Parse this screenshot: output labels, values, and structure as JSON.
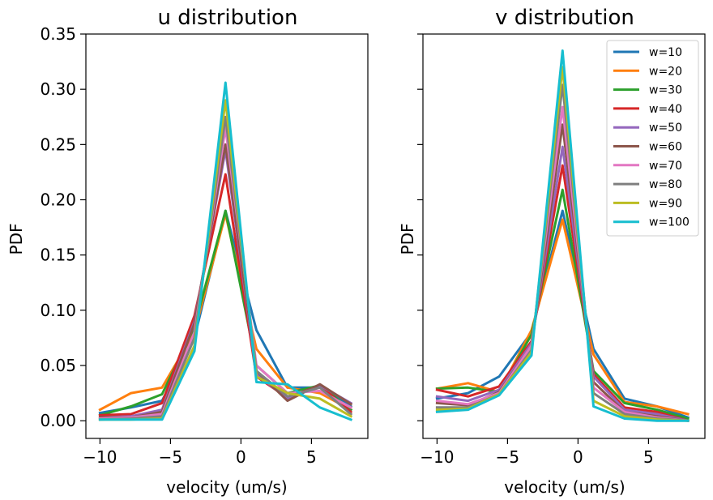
{
  "chart_data": [
    {
      "type": "line",
      "title": "u distribution",
      "xlabel": "velocity (um/s)",
      "ylabel": "PDF",
      "xlim": [
        -11,
        9
      ],
      "ylim": [
        -0.016,
        0.35
      ],
      "xticks": [
        -10,
        -5,
        0,
        5
      ],
      "yticks": [
        0.0,
        0.05,
        0.1,
        0.15,
        0.2,
        0.25,
        0.3,
        0.35
      ],
      "xtick_labels": [
        "−10",
        "−5",
        "0",
        "5"
      ],
      "ytick_labels": [
        "0.00",
        "0.05",
        "0.10",
        "0.15",
        "0.20",
        "0.25",
        "0.30",
        "0.35"
      ],
      "legend": null,
      "grid": false,
      "x": [
        -10,
        -7.8,
        -5.6,
        -3.3,
        -1.1,
        1.1,
        3.3,
        5.6,
        7.8
      ],
      "series": [
        {
          "name": "w=10",
          "color": "#1f77b4",
          "values": [
            0.007,
            0.012,
            0.018,
            0.075,
            0.19,
            0.082,
            0.03,
            0.03,
            0.013
          ]
        },
        {
          "name": "w=20",
          "color": "#ff7f0e",
          "values": [
            0.01,
            0.025,
            0.03,
            0.08,
            0.187,
            0.065,
            0.03,
            0.025,
            0.01
          ]
        },
        {
          "name": "w=30",
          "color": "#2ca02c",
          "values": [
            0.005,
            0.013,
            0.024,
            0.085,
            0.19,
            0.05,
            0.025,
            0.032,
            0.01
          ]
        },
        {
          "name": "w=40",
          "color": "#d62728",
          "values": [
            0.005,
            0.006,
            0.016,
            0.095,
            0.223,
            0.04,
            0.021,
            0.032,
            0.008
          ]
        },
        {
          "name": "w=50",
          "color": "#9467bd",
          "values": [
            0.003,
            0.004,
            0.01,
            0.09,
            0.245,
            0.042,
            0.02,
            0.032,
            0.016
          ]
        },
        {
          "name": "w=60",
          "color": "#8c564b",
          "values": [
            0.003,
            0.003,
            0.008,
            0.088,
            0.25,
            0.045,
            0.018,
            0.033,
            0.015
          ]
        },
        {
          "name": "w=70",
          "color": "#e377c2",
          "values": [
            0.002,
            0.003,
            0.006,
            0.08,
            0.265,
            0.05,
            0.025,
            0.027,
            0.012
          ]
        },
        {
          "name": "w=80",
          "color": "#7f7f7f",
          "values": [
            0.001,
            0.002,
            0.004,
            0.075,
            0.275,
            0.045,
            0.022,
            0.03,
            0.006
          ]
        },
        {
          "name": "w=90",
          "color": "#bcbd22",
          "values": [
            0.001,
            0.001,
            0.002,
            0.068,
            0.29,
            0.04,
            0.025,
            0.02,
            0.004
          ]
        },
        {
          "name": "w=100",
          "color": "#17becf",
          "values": [
            0.001,
            0.001,
            0.001,
            0.063,
            0.306,
            0.035,
            0.033,
            0.012,
            0.001
          ]
        }
      ]
    },
    {
      "type": "line",
      "title": "v distribution",
      "xlabel": "velocity (um/s)",
      "ylabel": "PDF",
      "xlim": [
        -11,
        9
      ],
      "ylim": [
        -0.016,
        0.35
      ],
      "xticks": [
        -10,
        -5,
        0,
        5
      ],
      "yticks": [
        0.0,
        0.05,
        0.1,
        0.15,
        0.2,
        0.25,
        0.3,
        0.35
      ],
      "xtick_labels": [
        "−10",
        "−5",
        "0",
        "5"
      ],
      "legend": "top-right",
      "grid": false,
      "x": [
        -10,
        -7.8,
        -5.6,
        -3.3,
        -1.1,
        1.1,
        3.3,
        5.6,
        7.8
      ],
      "series": [
        {
          "name": "w=10",
          "color": "#1f77b4",
          "values": [
            0.02,
            0.025,
            0.04,
            0.08,
            0.19,
            0.065,
            0.02,
            0.013,
            0.003
          ]
        },
        {
          "name": "w=20",
          "color": "#ff7f0e",
          "values": [
            0.029,
            0.034,
            0.026,
            0.082,
            0.182,
            0.06,
            0.017,
            0.013,
            0.006
          ]
        },
        {
          "name": "w=30",
          "color": "#2ca02c",
          "values": [
            0.029,
            0.03,
            0.026,
            0.078,
            0.209,
            0.045,
            0.016,
            0.01,
            0.002
          ]
        },
        {
          "name": "w=40",
          "color": "#d62728",
          "values": [
            0.028,
            0.022,
            0.031,
            0.072,
            0.231,
            0.042,
            0.012,
            0.008,
            0.0
          ]
        },
        {
          "name": "w=50",
          "color": "#9467bd",
          "values": [
            0.022,
            0.018,
            0.028,
            0.07,
            0.248,
            0.04,
            0.01,
            0.006,
            0.0
          ]
        },
        {
          "name": "w=60",
          "color": "#8c564b",
          "values": [
            0.016,
            0.014,
            0.026,
            0.068,
            0.268,
            0.035,
            0.008,
            0.004,
            0.0
          ]
        },
        {
          "name": "w=70",
          "color": "#e377c2",
          "values": [
            0.018,
            0.015,
            0.025,
            0.068,
            0.284,
            0.03,
            0.008,
            0.003,
            0.0
          ]
        },
        {
          "name": "w=80",
          "color": "#7f7f7f",
          "values": [
            0.012,
            0.012,
            0.024,
            0.064,
            0.304,
            0.025,
            0.006,
            0.002,
            0.0
          ]
        },
        {
          "name": "w=90",
          "color": "#bcbd22",
          "values": [
            0.01,
            0.011,
            0.024,
            0.062,
            0.32,
            0.018,
            0.004,
            0.001,
            0.0
          ]
        },
        {
          "name": "w=100",
          "color": "#17becf",
          "values": [
            0.008,
            0.01,
            0.023,
            0.059,
            0.335,
            0.013,
            0.002,
            0.0,
            0.0
          ]
        }
      ]
    }
  ]
}
